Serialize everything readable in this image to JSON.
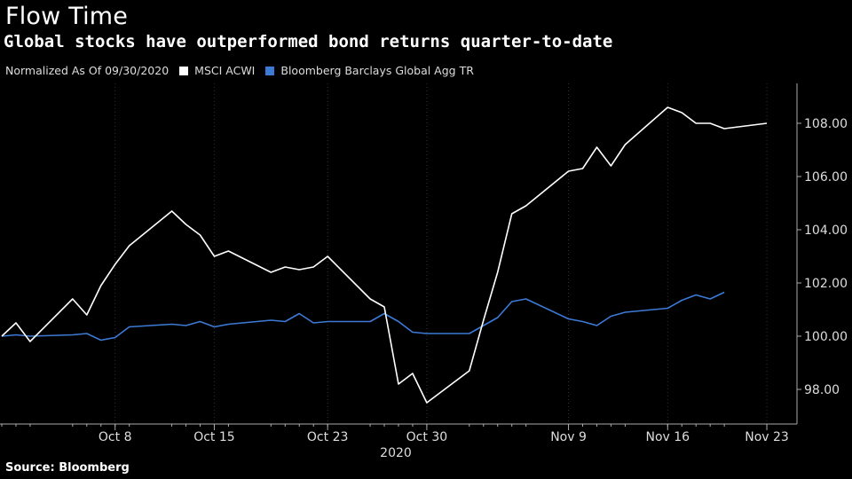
{
  "header": {
    "title": "Flow Time",
    "subtitle": "Global stocks have outperformed bond returns quarter-to-date",
    "legend_note": "Normalized As Of 09/30/2020",
    "source": "Source: Bloomberg"
  },
  "colors": {
    "background": "#000000",
    "msci": "#ffffff",
    "bbg": "#3d7ad6",
    "grid": "#333333"
  },
  "chart_data": {
    "type": "line",
    "title": "Flow Time",
    "subtitle": "Global stocks have outperformed bond returns quarter-to-date",
    "xlabel": "2020",
    "ylabel": "",
    "ylim": [
      96.7,
      109.5
    ],
    "yticks": [
      98,
      100,
      102,
      104,
      106,
      108
    ],
    "ytick_labels": [
      "98.00",
      "100.00",
      "102.00",
      "104.00",
      "106.00",
      "108.00"
    ],
    "x_axis_label": "2020",
    "xtick_labels": [
      "Oct 8",
      "Oct 15",
      "Oct 23",
      "Oct 30",
      "Nov 9",
      "Nov 16",
      "Nov 23"
    ],
    "xtick_dates": [
      "2020-10-08",
      "2020-10-15",
      "2020-10-23",
      "2020-10-30",
      "2020-11-09",
      "2020-11-16",
      "2020-11-23"
    ],
    "grid": "vertical dotted",
    "legend_position": "top-left",
    "series": [
      {
        "name": "MSCI ACWI",
        "color": "#ffffff",
        "x": [
          "2020-09-30",
          "2020-10-01",
          "2020-10-02",
          "2020-10-05",
          "2020-10-06",
          "2020-10-07",
          "2020-10-08",
          "2020-10-09",
          "2020-10-12",
          "2020-10-13",
          "2020-10-14",
          "2020-10-15",
          "2020-10-16",
          "2020-10-19",
          "2020-10-20",
          "2020-10-21",
          "2020-10-22",
          "2020-10-23",
          "2020-10-26",
          "2020-10-27",
          "2020-10-28",
          "2020-10-29",
          "2020-10-30",
          "2020-11-02",
          "2020-11-03",
          "2020-11-04",
          "2020-11-05",
          "2020-11-06",
          "2020-11-09",
          "2020-11-10",
          "2020-11-11",
          "2020-11-12",
          "2020-11-13",
          "2020-11-16",
          "2020-11-17",
          "2020-11-18",
          "2020-11-19",
          "2020-11-20",
          "2020-11-23"
        ],
        "y": [
          100.0,
          100.5,
          99.8,
          101.4,
          100.8,
          101.9,
          102.7,
          103.4,
          104.7,
          104.2,
          103.8,
          103.0,
          103.2,
          102.4,
          102.6,
          102.5,
          102.6,
          103.0,
          101.4,
          101.1,
          98.2,
          98.6,
          97.5,
          98.7,
          100.6,
          102.4,
          104.6,
          104.9,
          106.2,
          106.3,
          107.1,
          106.4,
          107.2,
          108.6,
          108.4,
          108.0,
          108.0,
          107.8,
          108.0
        ]
      },
      {
        "name": "Bloomberg Barclays Global Agg TR",
        "color": "#3d7ad6",
        "x": [
          "2020-09-30",
          "2020-10-01",
          "2020-10-02",
          "2020-10-05",
          "2020-10-06",
          "2020-10-07",
          "2020-10-08",
          "2020-10-09",
          "2020-10-12",
          "2020-10-13",
          "2020-10-14",
          "2020-10-15",
          "2020-10-16",
          "2020-10-19",
          "2020-10-20",
          "2020-10-21",
          "2020-10-22",
          "2020-10-23",
          "2020-10-26",
          "2020-10-27",
          "2020-10-28",
          "2020-10-29",
          "2020-10-30",
          "2020-11-02",
          "2020-11-03",
          "2020-11-04",
          "2020-11-05",
          "2020-11-06",
          "2020-11-09",
          "2020-11-10",
          "2020-11-11",
          "2020-11-12",
          "2020-11-13",
          "2020-11-16",
          "2020-11-17",
          "2020-11-18",
          "2020-11-19",
          "2020-11-20"
        ],
        "y": [
          100.0,
          100.05,
          100.0,
          100.05,
          100.1,
          99.85,
          99.95,
          100.35,
          100.45,
          100.4,
          100.55,
          100.35,
          100.45,
          100.6,
          100.55,
          100.85,
          100.5,
          100.55,
          100.55,
          100.85,
          100.55,
          100.15,
          100.1,
          100.1,
          100.4,
          100.7,
          101.3,
          101.4,
          100.65,
          100.55,
          100.4,
          100.75,
          100.9,
          101.05,
          101.35,
          101.55,
          101.4,
          101.65
        ]
      }
    ]
  }
}
